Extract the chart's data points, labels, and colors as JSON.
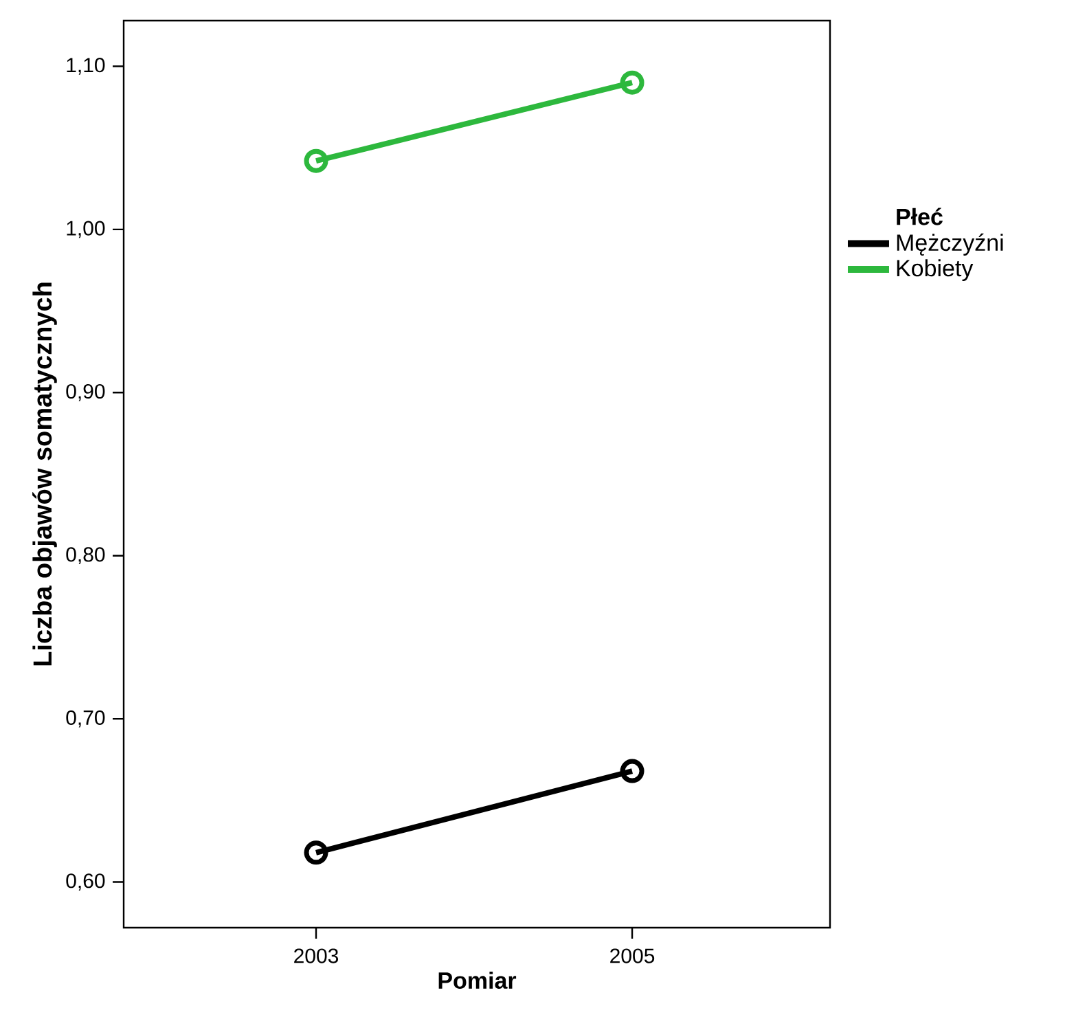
{
  "chart_data": {
    "type": "line",
    "xlabel": "Pomiar",
    "ylabel": "Liczba objawów somatycznych",
    "legend_title": "Płeć",
    "categories": [
      "2003",
      "2005"
    ],
    "series": [
      {
        "name": "Mężczyźni",
        "color": "#000000",
        "values": [
          0.618,
          0.668
        ]
      },
      {
        "name": "Kobiety",
        "color": "#2db83d",
        "values": [
          1.042,
          1.09
        ]
      }
    ],
    "ylim": [
      0.572,
      1.128
    ],
    "yticks": [
      {
        "value": 0.6,
        "label": "0,60"
      },
      {
        "value": 0.7,
        "label": "0,70"
      },
      {
        "value": 0.8,
        "label": "0,80"
      },
      {
        "value": 0.9,
        "label": "0,90"
      },
      {
        "value": 1.0,
        "label": "1,00"
      },
      {
        "value": 1.1,
        "label": "1,10"
      }
    ],
    "grid": false,
    "legend": "right",
    "marker": "circle",
    "line_style": "solid"
  }
}
